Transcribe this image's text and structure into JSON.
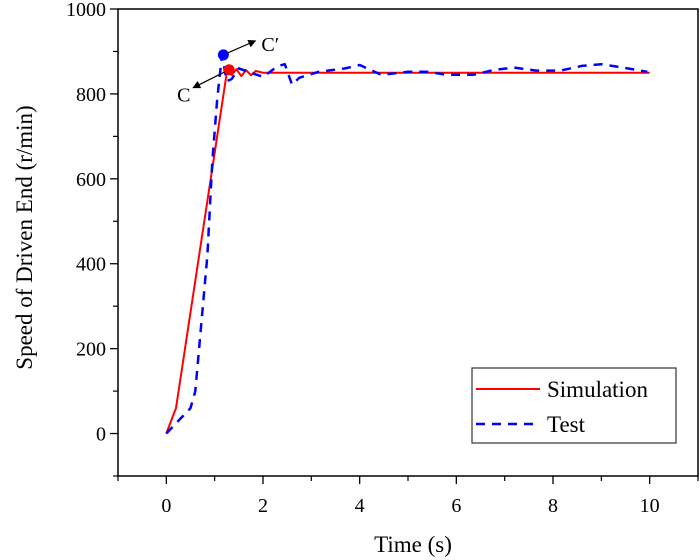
{
  "chart_data": {
    "type": "line",
    "title": "",
    "xlabel": "Time (s)",
    "ylabel": "Speed of Driven End (r/min)",
    "xlim": [
      -1,
      11
    ],
    "ylim": [
      -100,
      1000
    ],
    "xticks": [
      0,
      2,
      4,
      6,
      8,
      10
    ],
    "xtick_labels": [
      "0",
      "2",
      "4",
      "6",
      "8",
      "10"
    ],
    "xminor": [
      -1,
      1,
      3,
      5,
      7,
      9,
      11
    ],
    "yticks": [
      0,
      200,
      400,
      600,
      800,
      1000
    ],
    "ytick_labels": [
      "0",
      "200",
      "400",
      "600",
      "800",
      "1000"
    ],
    "yminor": [
      -100,
      100,
      300,
      500,
      700,
      900
    ],
    "grid": false,
    "legend_position": "bottom-right",
    "series": [
      {
        "name": "Simulation",
        "color": "#ff0000",
        "style": "solid",
        "x": [
          0,
          0.2,
          1.25,
          1.35,
          1.45,
          1.55,
          1.65,
          1.75,
          1.85,
          2.0,
          10
        ],
        "y": [
          0,
          60,
          850,
          845,
          858,
          842,
          856,
          844,
          854,
          850,
          850
        ]
      },
      {
        "name": "Test",
        "color": "#0000ff",
        "style": "dashed",
        "x": [
          0,
          0.5,
          0.6,
          0.85,
          0.95,
          1.05,
          1.15,
          1.25,
          1.35,
          1.5,
          1.75,
          2.0,
          2.3,
          2.45,
          2.6,
          2.75,
          3.15,
          3.7,
          4.0,
          4.45,
          5.0,
          5.4,
          5.8,
          6.35,
          6.8,
          7.2,
          7.65,
          8.15,
          8.6,
          9.0,
          9.45,
          9.95
        ],
        "y": [
          0,
          60,
          100,
          420,
          640,
          785,
          890,
          830,
          835,
          860,
          850,
          840,
          865,
          870,
          822,
          838,
          852,
          860,
          868,
          845,
          852,
          852,
          845,
          845,
          857,
          862,
          855,
          855,
          866,
          870,
          862,
          852
        ]
      }
    ],
    "annotations": [
      {
        "label": "C",
        "point": [
          1.3,
          857
        ],
        "series": "Simulation",
        "color": "#ff0000",
        "arrow_direction": "down-left"
      },
      {
        "label": "C′",
        "point": [
          1.18,
          892
        ],
        "series": "Test",
        "color": "#0000ff",
        "arrow_direction": "up-right"
      }
    ]
  }
}
